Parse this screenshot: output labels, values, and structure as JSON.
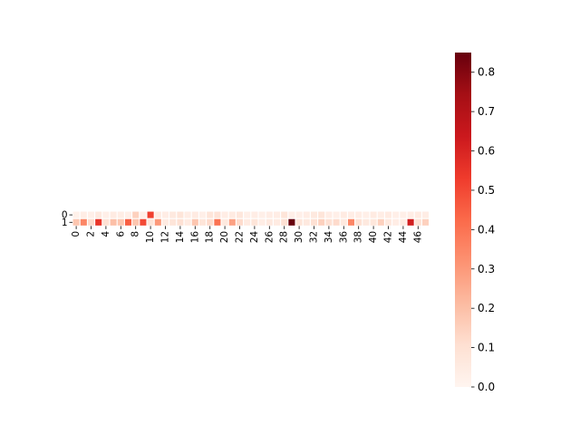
{
  "chart_data": {
    "type": "heatmap",
    "title": "",
    "xlabel": "",
    "ylabel": "",
    "rows": [
      "0",
      "1"
    ],
    "columns": [
      0,
      1,
      2,
      3,
      4,
      5,
      6,
      7,
      8,
      9,
      10,
      11,
      12,
      13,
      14,
      15,
      16,
      17,
      18,
      19,
      20,
      21,
      22,
      23,
      24,
      25,
      26,
      27,
      28,
      29,
      30,
      31,
      32,
      33,
      34,
      35,
      36,
      37,
      38,
      39,
      40,
      41,
      42,
      43,
      44,
      45,
      46,
      47
    ],
    "x_tick_labels": [
      "0",
      "2",
      "4",
      "6",
      "8",
      "10",
      "12",
      "14",
      "16",
      "18",
      "20",
      "22",
      "24",
      "26",
      "28",
      "30",
      "32",
      "34",
      "36",
      "38",
      "40",
      "42",
      "44",
      "46"
    ],
    "y_tick_labels": [
      "0",
      "1"
    ],
    "values": [
      [
        0.02,
        0.04,
        0.03,
        0.06,
        0.03,
        0.05,
        0.04,
        0.03,
        0.15,
        0.03,
        0.52,
        0.05,
        0.04,
        0.06,
        0.08,
        0.04,
        0.05,
        0.03,
        0.08,
        0.09,
        0.04,
        0.05,
        0.07,
        0.03,
        0.04,
        0.03,
        0.04,
        0.04,
        0.08,
        0.03,
        0.03,
        0.04,
        0.06,
        0.08,
        0.04,
        0.03,
        0.05,
        0.04,
        0.04,
        0.03,
        0.05,
        0.04,
        0.05,
        0.03,
        0.03,
        0.04,
        0.05,
        0.04
      ],
      [
        0.18,
        0.35,
        0.12,
        0.55,
        0.1,
        0.2,
        0.18,
        0.45,
        0.18,
        0.5,
        0.08,
        0.3,
        0.05,
        0.08,
        0.1,
        0.05,
        0.18,
        0.08,
        0.12,
        0.4,
        0.06,
        0.28,
        0.12,
        0.05,
        0.08,
        0.04,
        0.06,
        0.05,
        0.1,
        0.85,
        0.08,
        0.06,
        0.1,
        0.15,
        0.1,
        0.12,
        0.06,
        0.35,
        0.1,
        0.06,
        0.07,
        0.15,
        0.06,
        0.04,
        0.05,
        0.62,
        0.1,
        0.15
      ]
    ],
    "colorbar": {
      "colormap": "Reds",
      "min": 0.0,
      "max": 0.85,
      "ticks": [
        0.0,
        0.1,
        0.2,
        0.3,
        0.4,
        0.5,
        0.6,
        0.7,
        0.8
      ],
      "tick_labels": [
        "0.0",
        "0.1",
        "0.2",
        "0.3",
        "0.4",
        "0.5",
        "0.6",
        "0.7",
        "0.8"
      ]
    }
  }
}
